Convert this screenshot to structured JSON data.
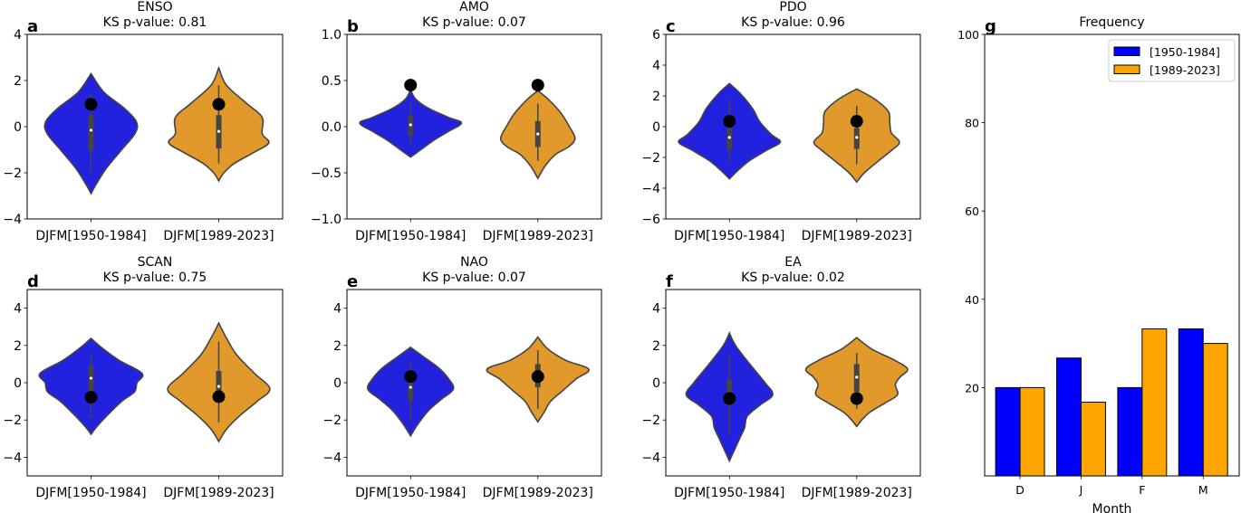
{
  "chart_data": [
    {
      "type": "violin",
      "panel_label": "a",
      "title": "ENSO",
      "subtitle": "KS p-value: 0.81",
      "ylim": [
        -4,
        4
      ],
      "yticks": [
        -4,
        -2,
        0,
        2,
        4
      ],
      "ytick_labels": [
        "−4",
        "−2",
        "0",
        "2",
        "4"
      ],
      "categories": [
        "DJFM[1950-1984]",
        "DJFM[1989-2023]"
      ],
      "series": [
        {
          "color": "#2121de",
          "min": -2.9,
          "max": 2.3,
          "q1": -1.05,
          "median": -0.15,
          "q3": 0.5,
          "whisker_low": -2.0,
          "whisker_high": 1.45,
          "marker": 0.97,
          "density": [
            [
              2.3,
              0
            ],
            [
              1.5,
              0.25
            ],
            [
              0.8,
              0.65
            ],
            [
              0.2,
              0.89
            ],
            [
              -0.3,
              0.86
            ],
            [
              -1.0,
              0.6
            ],
            [
              -1.8,
              0.3
            ],
            [
              -2.5,
              0.1
            ],
            [
              -2.9,
              0
            ]
          ]
        },
        {
          "color": "#e0992a",
          "min": -2.35,
          "max": 2.55,
          "q1": -0.95,
          "median": -0.2,
          "q3": 0.5,
          "whisker_low": -1.6,
          "whisker_high": 1.8,
          "marker": 0.97,
          "density": [
            [
              2.55,
              0
            ],
            [
              1.8,
              0.15
            ],
            [
              1.0,
              0.55
            ],
            [
              0.4,
              0.85
            ],
            [
              -0.3,
              0.85
            ],
            [
              -0.7,
              0.98
            ],
            [
              -1.1,
              0.7
            ],
            [
              -1.6,
              0.3
            ],
            [
              -2.0,
              0.1
            ],
            [
              -2.35,
              0
            ]
          ]
        }
      ]
    },
    {
      "type": "violin",
      "panel_label": "b",
      "title": "AMO",
      "subtitle": "KS p-value: 0.07",
      "ylim": [
        -1,
        1
      ],
      "yticks": [
        -1,
        -0.5,
        0,
        0.5,
        1
      ],
      "ytick_labels": [
        "−1.0",
        "−0.5",
        "0.0",
        "0.5",
        "1.0"
      ],
      "categories": [
        "DJFM[1950-1984]",
        "DJFM[1989-2023]"
      ],
      "series": [
        {
          "color": "#2121de",
          "min": -0.33,
          "max": 0.4,
          "q1": -0.1,
          "median": 0.02,
          "q3": 0.12,
          "whisker_low": -0.2,
          "whisker_high": 0.27,
          "marker": 0.45,
          "density": [
            [
              0.4,
              0
            ],
            [
              0.3,
              0.1
            ],
            [
              0.2,
              0.35
            ],
            [
              0.1,
              0.75
            ],
            [
              0.04,
              1.0
            ],
            [
              -0.05,
              0.75
            ],
            [
              -0.15,
              0.45
            ],
            [
              -0.25,
              0.2
            ],
            [
              -0.33,
              0
            ]
          ]
        },
        {
          "color": "#e0992a",
          "min": -0.56,
          "max": 0.39,
          "q1": -0.22,
          "median": -0.08,
          "q3": 0.06,
          "whisker_low": -0.37,
          "whisker_high": 0.25,
          "marker": 0.45,
          "density": [
            [
              0.39,
              0
            ],
            [
              0.3,
              0.2
            ],
            [
              0.15,
              0.45
            ],
            [
              0.0,
              0.62
            ],
            [
              -0.13,
              0.73
            ],
            [
              -0.22,
              0.6
            ],
            [
              -0.3,
              0.35
            ],
            [
              -0.42,
              0.15
            ],
            [
              -0.56,
              0
            ]
          ]
        }
      ]
    },
    {
      "type": "violin",
      "panel_label": "c",
      "title": "PDO",
      "subtitle": "KS p-value: 0.96",
      "ylim": [
        -6,
        6
      ],
      "yticks": [
        -6,
        -4,
        -2,
        0,
        2,
        4,
        6
      ],
      "ytick_labels": [
        "−6",
        "−4",
        "−2",
        "0",
        "2",
        "4",
        "6"
      ],
      "categories": [
        "DJFM[1950-1984]",
        "DJFM[1989-2023]"
      ],
      "series": [
        {
          "color": "#2121de",
          "min": -3.4,
          "max": 2.8,
          "q1": -1.5,
          "median": -0.7,
          "q3": -0.1,
          "whisker_low": -2.3,
          "whisker_high": 1.75,
          "marker": 0.35,
          "density": [
            [
              2.8,
              0
            ],
            [
              2.2,
              0.2
            ],
            [
              1.2,
              0.45
            ],
            [
              0.3,
              0.6
            ],
            [
              -0.5,
              0.82
            ],
            [
              -1.0,
              1.0
            ],
            [
              -1.5,
              0.75
            ],
            [
              -2.2,
              0.4
            ],
            [
              -2.9,
              0.15
            ],
            [
              -3.4,
              0
            ]
          ]
        },
        {
          "color": "#e0992a",
          "min": -3.6,
          "max": 2.45,
          "q1": -1.45,
          "median": -0.7,
          "q3": -0.1,
          "whisker_low": -2.45,
          "whisker_high": 1.35,
          "marker": 0.35,
          "density": [
            [
              2.45,
              0
            ],
            [
              1.8,
              0.35
            ],
            [
              1.0,
              0.62
            ],
            [
              0.3,
              0.65
            ],
            [
              -0.4,
              0.68
            ],
            [
              -1.0,
              0.84
            ],
            [
              -1.5,
              0.7
            ],
            [
              -2.3,
              0.4
            ],
            [
              -3.0,
              0.15
            ],
            [
              -3.6,
              0
            ]
          ]
        }
      ]
    },
    {
      "type": "violin",
      "panel_label": "d",
      "title": "SCAN",
      "subtitle": "KS p-value: 0.75",
      "ylim": [
        -5,
        5
      ],
      "yticks": [
        -4,
        -2,
        0,
        2,
        4
      ],
      "ytick_labels": [
        "−4",
        "−2",
        "0",
        "2",
        "4"
      ],
      "categories": [
        "DJFM[1950-1984]",
        "DJFM[1989-2023]"
      ],
      "series": [
        {
          "color": "#2121de",
          "min": -2.77,
          "max": 2.38,
          "q1": -0.6,
          "median": 0.24,
          "q3": 0.87,
          "whisker_low": -1.9,
          "whisker_high": 1.5,
          "marker": -0.78,
          "density": [
            [
              2.38,
              0
            ],
            [
              1.9,
              0.2
            ],
            [
              1.2,
              0.55
            ],
            [
              0.5,
              1.0
            ],
            [
              0,
              0.9
            ],
            [
              -0.5,
              0.85
            ],
            [
              -1.0,
              0.6
            ],
            [
              -1.8,
              0.3
            ],
            [
              -2.4,
              0.1
            ],
            [
              -2.77,
              0
            ]
          ]
        },
        {
          "color": "#e0992a",
          "min": -3.15,
          "max": 3.2,
          "q1": -0.9,
          "median": -0.2,
          "q3": 0.63,
          "whisker_low": -2.13,
          "whisker_high": 2.2,
          "marker": -0.75,
          "density": [
            [
              3.2,
              0
            ],
            [
              2.4,
              0.15
            ],
            [
              1.5,
              0.35
            ],
            [
              0.5,
              0.7
            ],
            [
              -0.33,
              1.0
            ],
            [
              -1.0,
              0.75
            ],
            [
              -1.8,
              0.4
            ],
            [
              -2.5,
              0.15
            ],
            [
              -3.15,
              0
            ]
          ]
        }
      ]
    },
    {
      "type": "violin",
      "panel_label": "e",
      "title": "NAO",
      "subtitle": "KS p-value: 0.07",
      "ylim": [
        -5,
        5
      ],
      "yticks": [
        -4,
        -2,
        0,
        2,
        4
      ],
      "ytick_labels": [
        "−4",
        "−2",
        "0",
        "2",
        "4"
      ],
      "categories": [
        "DJFM[1950-1984]",
        "DJFM[1989-2023]"
      ],
      "series": [
        {
          "color": "#2121de",
          "min": -2.85,
          "max": 1.9,
          "q1": -0.95,
          "median": -0.25,
          "q3": 0.1,
          "whisker_low": -2.05,
          "whisker_high": 1.17,
          "marker": 0.33,
          "density": [
            [
              1.9,
              0
            ],
            [
              1.4,
              0.25
            ],
            [
              0.8,
              0.55
            ],
            [
              0.2,
              0.75
            ],
            [
              -0.35,
              0.84
            ],
            [
              -0.9,
              0.6
            ],
            [
              -1.5,
              0.35
            ],
            [
              -2.2,
              0.15
            ],
            [
              -2.85,
              0
            ]
          ]
        },
        {
          "color": "#e0992a",
          "min": -2.1,
          "max": 2.45,
          "q1": -0.25,
          "median": 0.4,
          "q3": 1.0,
          "whisker_low": -1.4,
          "whisker_high": 1.75,
          "marker": 0.33,
          "density": [
            [
              2.45,
              0
            ],
            [
              1.8,
              0.2
            ],
            [
              1.2,
              0.55
            ],
            [
              0.72,
              1.0
            ],
            [
              0.2,
              0.75
            ],
            [
              -0.4,
              0.5
            ],
            [
              -1.0,
              0.25
            ],
            [
              -1.6,
              0.12
            ],
            [
              -2.1,
              0
            ]
          ]
        }
      ]
    },
    {
      "type": "violin",
      "panel_label": "f",
      "title": "EA",
      "subtitle": "KS p-value: 0.02",
      "ylim": [
        -5,
        5
      ],
      "yticks": [
        -4,
        -2,
        0,
        2,
        4
      ],
      "ytick_labels": [
        "−4",
        "−2",
        "0",
        "2",
        "4"
      ],
      "categories": [
        "DJFM[1950-1984]",
        "DJFM[1989-2023]"
      ],
      "series": [
        {
          "color": "#2121de",
          "min": -4.2,
          "max": 2.67,
          "q1": -1.2,
          "median": -0.8,
          "q3": 0.15,
          "whisker_low": -2.8,
          "whisker_high": 1.55,
          "marker": -0.85,
          "density": [
            [
              2.67,
              0
            ],
            [
              2.0,
              0.12
            ],
            [
              1.0,
              0.4
            ],
            [
              0,
              0.7
            ],
            [
              -0.65,
              0.85
            ],
            [
              -1.2,
              0.6
            ],
            [
              -1.8,
              0.35
            ],
            [
              -2.4,
              0.3
            ],
            [
              -3.0,
              0.2
            ],
            [
              -3.6,
              0.1
            ],
            [
              -4.2,
              0
            ]
          ]
        },
        {
          "color": "#e0992a",
          "min": -2.35,
          "max": 2.42,
          "q1": -0.5,
          "median": 0.3,
          "q3": 1.0,
          "whisker_low": -1.4,
          "whisker_high": 1.6,
          "marker": -0.85,
          "density": [
            [
              2.42,
              0
            ],
            [
              1.8,
              0.3
            ],
            [
              1.2,
              0.75
            ],
            [
              0.73,
              1.0
            ],
            [
              0.3,
              0.85
            ],
            [
              -0.1,
              0.76
            ],
            [
              -0.65,
              0.8
            ],
            [
              -1.1,
              0.55
            ],
            [
              -1.6,
              0.25
            ],
            [
              -2.0,
              0.1
            ],
            [
              -2.35,
              0
            ]
          ]
        }
      ]
    },
    {
      "type": "bar",
      "panel_label": "g",
      "title": "Frequency",
      "xlabel": "Month",
      "ylabel": "",
      "categories": [
        "D",
        "J",
        "F",
        "M"
      ],
      "ylim": [
        0,
        100
      ],
      "yticks": [
        20,
        40,
        60,
        80,
        100
      ],
      "ytick_labels": [
        "20",
        "40",
        "60",
        "80",
        "100"
      ],
      "legend": "top-right",
      "series": [
        {
          "name": "[1950-1984]",
          "color": "#0000ff",
          "values": [
            20,
            26.7,
            20,
            33.3
          ]
        },
        {
          "name": "[1989-2023]",
          "color": "#ffa500",
          "values": [
            20,
            16.7,
            33.3,
            30
          ]
        }
      ]
    }
  ]
}
